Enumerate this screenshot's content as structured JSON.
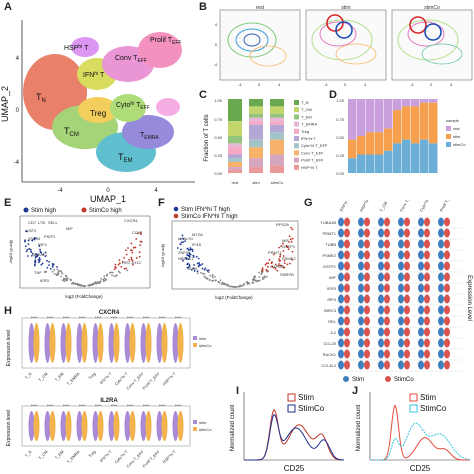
{
  "panel_letters": [
    "A",
    "B",
    "C",
    "D",
    "E",
    "F",
    "G",
    "H",
    "I",
    "J"
  ],
  "A": {
    "xlabel": "UMAP_1",
    "ylabel": "UMAP_2",
    "xticks": [
      "-4",
      "0",
      "4"
    ],
    "yticks": [
      "4",
      "0",
      "-4"
    ],
    "clusters": [
      {
        "name": "HSP",
        "sup": "hi",
        "suffix": " T"
      },
      {
        "name": "T",
        "sub": "N"
      },
      {
        "name": "IFN",
        "sup": "hi",
        "suffix": " T"
      },
      {
        "name": "Conv T",
        "sub": "EFF"
      },
      {
        "name": "Prolif T",
        "sub": "EFF"
      },
      {
        "name": "Cyto",
        "sup": "hi",
        "suffix": " T",
        "sub2": "EFF"
      },
      {
        "name": "Treg"
      },
      {
        "name": "T",
        "sub": "CM"
      },
      {
        "name": "T",
        "sub": "EMRA"
      },
      {
        "name": "T",
        "sub": "EM"
      }
    ]
  },
  "B": {
    "facets": [
      "rest",
      "stim",
      "stimCo"
    ],
    "xticks": [
      "-4",
      "0",
      "4"
    ],
    "yticks": [
      "4",
      "0",
      "-4"
    ]
  },
  "C": {
    "ylabel": "Fraction of T cells",
    "yticks": [
      "0.00",
      "0.25",
      "0.50",
      "0.75",
      "1.00"
    ],
    "xticks": [
      "rest",
      "stim",
      "stimCo"
    ],
    "legend": [
      "T_N",
      "T_CM",
      "T_EM",
      "T_EMRA",
      "Treg",
      "IFN^hi T",
      "Cyto^hi T_EFF",
      "Conv T_EFF",
      "Prolif T_EFF",
      "HSP^hi T"
    ]
  },
  "D": {
    "yticks": [
      "1.00",
      "0.75",
      "0.50",
      "0.25",
      "0.00"
    ],
    "legend_title": "sample",
    "legend": [
      "rest",
      "stim",
      "stimCo"
    ],
    "colors": {
      "rest": "#c9a0dc",
      "stim": "#f6a04d",
      "stimCo": "#6baed6"
    }
  },
  "E": {
    "legend": [
      "Stim high",
      "StimCo high"
    ],
    "xlabel": "log2 (FoldChange)",
    "ylabel": "-log10 (p-adj)",
    "blue_genes": [
      "CD7",
      "LTB",
      "SELL",
      "CSF2",
      "PSIP1",
      "MIF",
      "ZNF90",
      "NBEAL1",
      "TNF",
      "IRF4",
      "IER3"
    ],
    "red_genes": [
      "CCL3",
      "HIST1H1C",
      "CXCR4"
    ]
  },
  "F": {
    "legend": [
      "Stim IFN^hi T high",
      "StimCo IFN^hi T high"
    ],
    "xlabel": "log2 (FoldChange)",
    "ylabel": "-log10 (p-adj)",
    "blue_genes": [
      "LGALS1",
      "MT2A",
      "IFI16",
      "ZNF90",
      "NBEAL1",
      "IER3"
    ],
    "red_genes": [
      "RPS26",
      "MIF",
      "GSTP1",
      "PRMT1",
      "PSME2",
      "GAPDH",
      "SNRPB"
    ]
  },
  "G": {
    "columns": [
      "IFN^hi T",
      "HSP^hi T",
      "T_CM",
      "Conv T_EFF",
      "Cyto^hi T_EFF",
      "Prolif T_EFF"
    ],
    "genes": [
      "TUBA1B",
      "PRMT1",
      "TUBB",
      "PSME2",
      "GSTP1",
      "MIF",
      "IER3",
      "IRF4",
      "BIRC3",
      "REL",
      "IL2",
      "CCL20",
      "RACK1",
      "CCL4L2"
    ],
    "ylabel": "Expression Level",
    "legend": [
      "Stim",
      "StimCo"
    ],
    "colors": {
      "Stim": "#3f7fbf",
      "StimCo": "#d9534f"
    }
  },
  "H": {
    "genes": [
      "CXCR4",
      "IL2RA"
    ],
    "ylabel": "Expression level",
    "legend": [
      "stim",
      "stimCo"
    ],
    "categories": [
      "T_N",
      "T_CM",
      "T_EM",
      "T_EMRA",
      "Treg",
      "IFN^hi T",
      "Cyto^hi T",
      "Conv T_EFF",
      "Prolif T_EFF",
      "HSP^hi T"
    ]
  },
  "I": {
    "legend": [
      "Stim",
      "StimCo"
    ],
    "xlabel": "CD25",
    "ylabel": "Normalized count",
    "colors": {
      "Stim": "#c0392b",
      "StimCo": "#1f2f8f"
    }
  },
  "J": {
    "legend": [
      "Stim",
      "StimCo"
    ],
    "xlabel": "CD25",
    "ylabel": "Normalized count",
    "colors": {
      "Stim": "#e74c3c",
      "StimCo": "#33c6e0"
    }
  }
}
